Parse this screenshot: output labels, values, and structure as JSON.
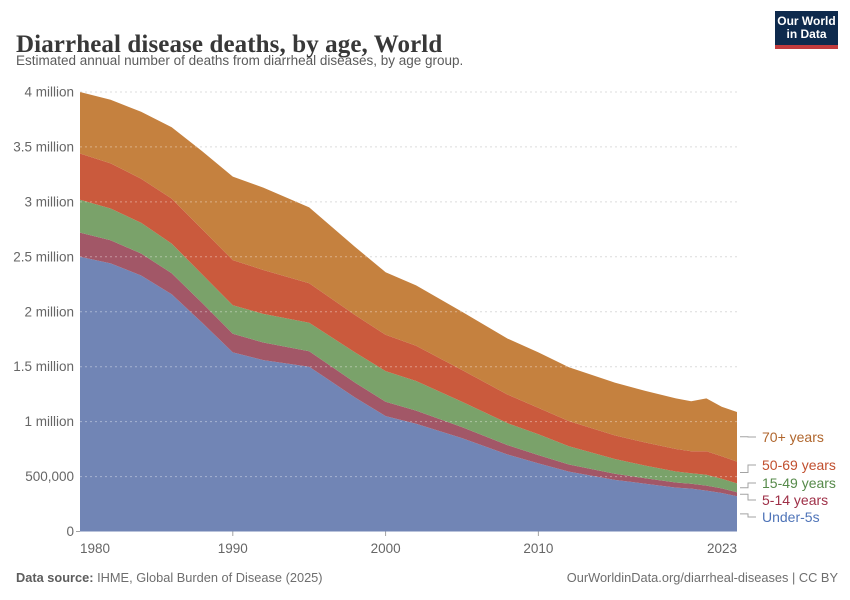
{
  "header": {
    "title": "Diarrheal disease deaths, by age, World",
    "subtitle": "Estimated annual number of deaths from diarrheal diseases, by age group."
  },
  "logo": {
    "line1": "Our World",
    "line2": "in Data",
    "bg_color": "#0e2a4d",
    "accent_color": "#c13b3d",
    "text_color": "#ffffff"
  },
  "legend": {
    "items": [
      {
        "label": "70+ years",
        "color": "#b0662d"
      },
      {
        "label": "50-69 years",
        "color": "#c14f2e"
      },
      {
        "label": "15-49 years",
        "color": "#568a4a"
      },
      {
        "label": "5-14 years",
        "color": "#9e2f47"
      },
      {
        "label": "Under-5s",
        "color": "#4f74b8"
      }
    ]
  },
  "footer": {
    "source_label": "Data source:",
    "source_text": " IHME, Global Burden of Disease (2025)",
    "license_text": "OurWorldinData.org/diarrheal-diseases | CC BY"
  },
  "chart_data": {
    "type": "area",
    "stacked": true,
    "title": "Diarrheal disease deaths, by age, World",
    "xlabel": "",
    "ylabel": "",
    "xlim": [
      1980,
      2023
    ],
    "ylim": [
      0,
      4000000
    ],
    "grid": "horizontal-dashed",
    "legend_position": "right",
    "x": [
      1980,
      1982,
      1984,
      1986,
      1988,
      1990,
      1992,
      1995,
      1998,
      2000,
      2002,
      2005,
      2008,
      2010,
      2012,
      2015,
      2017,
      2019,
      2020,
      2021,
      2022,
      2023
    ],
    "series": [
      {
        "name": "Under-5s",
        "color": "#7185b5",
        "label_color": "#4f74b8",
        "values": [
          2500000,
          2440000,
          2330000,
          2160000,
          1900000,
          1630000,
          1560000,
          1500000,
          1220000,
          1050000,
          980000,
          850000,
          700000,
          620000,
          545000,
          470000,
          435000,
          400000,
          390000,
          372000,
          350000,
          320000
        ]
      },
      {
        "name": "5-14 years",
        "color": "#a25767",
        "label_color": "#9e2f47",
        "values": [
          220000,
          210000,
          200000,
          190000,
          180000,
          170000,
          160000,
          140000,
          135000,
          130000,
          120000,
          100000,
          85000,
          75000,
          65000,
          55000,
          50000,
          46000,
          45000,
          46000,
          42000,
          38000
        ]
      },
      {
        "name": "15-49 years",
        "color": "#7aa26a",
        "label_color": "#568a4a",
        "values": [
          300000,
          290000,
          280000,
          270000,
          260000,
          260000,
          260000,
          260000,
          275000,
          280000,
          270000,
          230000,
          200000,
          190000,
          165000,
          135000,
          115000,
          100000,
          96000,
          98000,
          88000,
          80000
        ]
      },
      {
        "name": "50-69 years",
        "color": "#ca5a3d",
        "label_color": "#c14f2e",
        "values": [
          420000,
          410000,
          400000,
          410000,
          410000,
          410000,
          400000,
          360000,
          340000,
          330000,
          320000,
          290000,
          260000,
          240000,
          230000,
          215000,
          210000,
          205000,
          200000,
          215000,
          205000,
          198000
        ]
      },
      {
        "name": "70+ years",
        "color": "#c5813f",
        "label_color": "#b0662d",
        "values": [
          560000,
          580000,
          610000,
          650000,
          710000,
          760000,
          750000,
          690000,
          620000,
          570000,
          550000,
          530000,
          510000,
          505000,
          490000,
          480000,
          470000,
          460000,
          455000,
          480000,
          450000,
          452000
        ]
      }
    ],
    "y_ticks": [
      {
        "value": 0,
        "label": "0"
      },
      {
        "value": 500000,
        "label": "500,000"
      },
      {
        "value": 1000000,
        "label": "1 million"
      },
      {
        "value": 1500000,
        "label": "1.5 million"
      },
      {
        "value": 2000000,
        "label": "2 million"
      },
      {
        "value": 2500000,
        "label": "2.5 million"
      },
      {
        "value": 3000000,
        "label": "3 million"
      },
      {
        "value": 3500000,
        "label": "3.5 million"
      },
      {
        "value": 4000000,
        "label": "4 million"
      }
    ],
    "x_ticks": [
      {
        "value": 1980,
        "label": "1980",
        "anchor": "start"
      },
      {
        "value": 1990,
        "label": "1990",
        "anchor": "middle"
      },
      {
        "value": 2000,
        "label": "2000",
        "anchor": "middle"
      },
      {
        "value": 2010,
        "label": "2010",
        "anchor": "middle"
      },
      {
        "value": 2023,
        "label": "2023",
        "anchor": "end"
      }
    ],
    "colors": {
      "grid": "#dcdcdc",
      "grid_over_area": "rgba(255,255,255,0.38)",
      "tick_text": "#666666",
      "connector": "#a3a3a3"
    }
  }
}
